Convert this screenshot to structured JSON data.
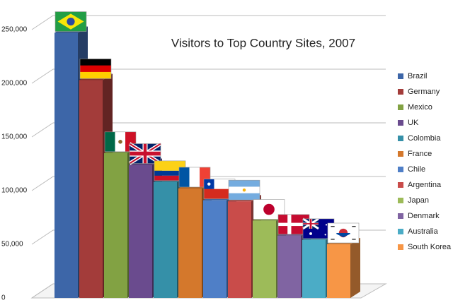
{
  "chart_data": {
    "type": "bar3d",
    "title": "Visitors to Top Country Sites, 2007",
    "categories": [
      "Brazil",
      "Germany",
      "Mexico",
      "UK",
      "Colombia",
      "France",
      "Chile",
      "Argentina",
      "Japan",
      "Denmark",
      "Australia",
      "South Korea"
    ],
    "values": [
      247000,
      203000,
      135000,
      124000,
      108000,
      102000,
      91000,
      90000,
      72000,
      58000,
      54000,
      50000
    ],
    "colors": [
      "#3d66a8",
      "#a33c3a",
      "#82a243",
      "#6a4b8e",
      "#3590a8",
      "#d4782c",
      "#4f7fc7",
      "#c94c4a",
      "#9dbb59",
      "#8064a2",
      "#4bacc6",
      "#f79646"
    ],
    "ylim": [
      0,
      250000
    ],
    "yticks": [
      0,
      {
        "value": 50000,
        "label": "50,000"
      },
      {
        "value": 100000,
        "label": "100,000"
      },
      {
        "value": 150000,
        "label": "150,000"
      },
      {
        "value": 200000,
        "label": "200,000"
      },
      {
        "value": 250000,
        "label": "250,000"
      }
    ],
    "grid": true,
    "legend": "right"
  }
}
